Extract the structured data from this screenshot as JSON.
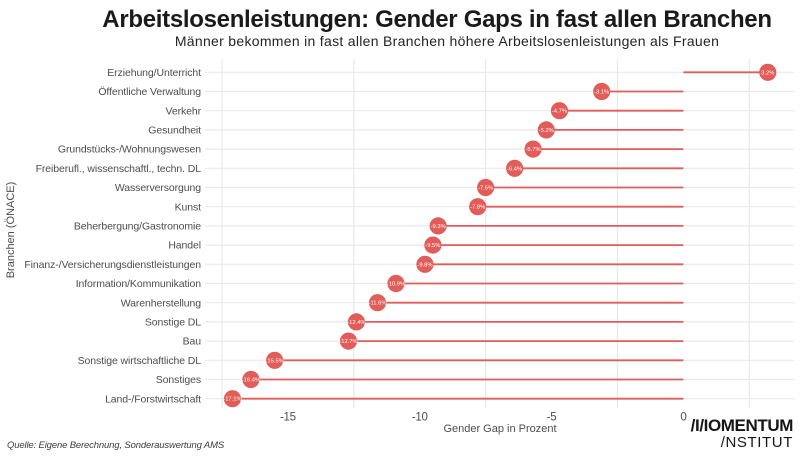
{
  "title": "Arbeitslosenleistungen: Gender Gaps in fast allen Branchen",
  "subtitle": "Männer bekommen in fast allen Branchen höhere Arbeitslosenleistungen als Frauen",
  "source_note": "Quelle: Eigene Berechnung, Sonderauswertung AMS",
  "logo": {
    "line1": "/I/IOMENTUM",
    "line2": "/NSTITUT"
  },
  "colors": {
    "accent": "#e15d59",
    "grid": "#e9e9e9",
    "axis_text": "#4d4d4d",
    "title_text": "#1a1a1a",
    "point_label_text": "#ffffff"
  },
  "chart_data": {
    "type": "bar",
    "variant": "lollipop",
    "orientation": "horizontal",
    "title": "Arbeitslosenleistungen: Gender Gaps in fast allen Branchen",
    "subtitle": "Männer bekommen in fast allen Branchen höhere Arbeitslosenleistungen als Frauen",
    "xlabel": "Gender Gap in Prozent",
    "ylabel": "Branchen (ÖNACE)",
    "xlim": [
      -18.15,
      4.2
    ],
    "x_ticks": [
      -15,
      -10,
      -5,
      0
    ],
    "x_tick_labels": [
      "-15",
      "-10",
      "-5",
      "0"
    ],
    "x_minor_gridlines": [
      -17.5,
      -12.5,
      -7.5,
      -2.5,
      2.5
    ],
    "grid": "minor-vertical-and-category-horizontal",
    "legend": "none",
    "categories": [
      "Erziehung/Unterricht",
      "Öffentliche Verwaltung",
      "Verkehr",
      "Gesundheit",
      "Grundstücks-/Wohnungswesen",
      "Freiberufl., wissenschaftl., techn. DL",
      "Wasserversorgung",
      "Kunst",
      "Beherbergung/Gastronomie",
      "Handel",
      "Finanz-/Versicherungsdienstleistungen",
      "Information/Kommunikation",
      "Warenherstellung",
      "Sonstige DL",
      "Bau",
      "Sonstige wirtschaftliche DL",
      "Sonstiges",
      "Land-/Forstwirtschaft"
    ],
    "values": [
      3.2,
      -3.1,
      -4.7,
      -5.2,
      -5.7,
      -6.4,
      -7.5,
      -7.8,
      -9.3,
      -9.5,
      -9.8,
      -10.9,
      -11.6,
      -12.4,
      -12.7,
      -15.5,
      -16.4,
      -17.1
    ],
    "point_labels": [
      "3.2%",
      "-3.1%",
      "-4.7%",
      "-5.2%",
      "-5.7%",
      "-6.4%",
      "-7.5%",
      "-7.8%",
      "-9.3%",
      "-9.5%",
      "-9.8%",
      "-10.9%",
      "-11.6%",
      "-12.4%",
      "-12.7%",
      "-15.5%",
      "-16.4%",
      "-17.1%"
    ]
  }
}
